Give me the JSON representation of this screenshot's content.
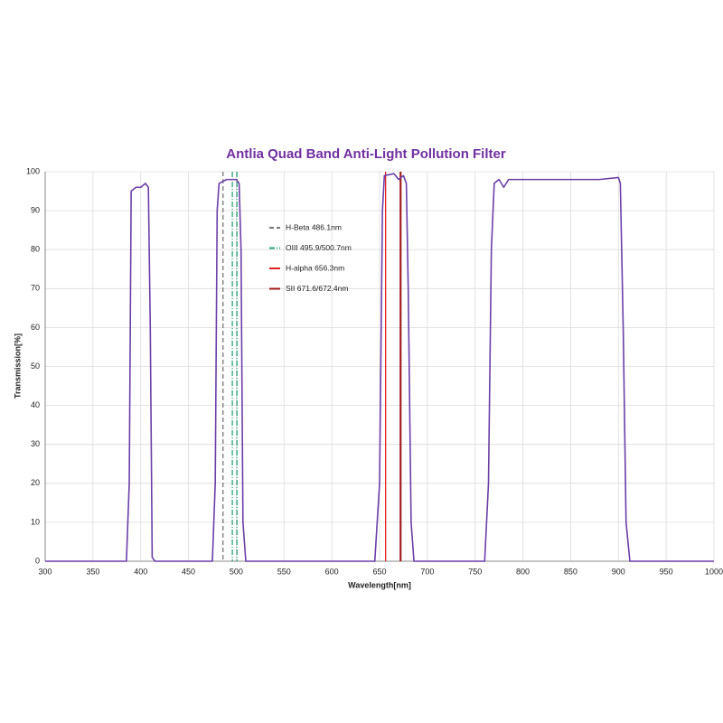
{
  "chart_data": {
    "type": "line",
    "title": "Antlia Quad Band Anti-Light Pollution Filter",
    "x_label": "Wavelength[nm]",
    "y_label": "Transmission[%]",
    "x": [
      300,
      385,
      388,
      390,
      395,
      400,
      405,
      408,
      410,
      412,
      415,
      475,
      478,
      480,
      482,
      490,
      500,
      503,
      505,
      507,
      510,
      645,
      650,
      653,
      655,
      665,
      670,
      675,
      678,
      680,
      683,
      686,
      760,
      764,
      767,
      770,
      775,
      780,
      785,
      800,
      850,
      880,
      900,
      902,
      905,
      908,
      912,
      1000
    ],
    "values": [
      0,
      0,
      20,
      95,
      96,
      96,
      97,
      96,
      60,
      1,
      0,
      0,
      20,
      90,
      97,
      98,
      98,
      97,
      80,
      10,
      0,
      0,
      20,
      90,
      99,
      99.5,
      98,
      99,
      97,
      70,
      10,
      0,
      0,
      20,
      80,
      97,
      98,
      96,
      98,
      98,
      98,
      98,
      98.5,
      97,
      60,
      10,
      0,
      0
    ],
    "color": "#6b3fa8",
    "reference_lines": [
      {
        "name": "H-Beta 486.1nm",
        "color": "#777777",
        "dash": "5,3",
        "x": [
          486.1
        ]
      },
      {
        "name": "OIII 495.9/500.7nm",
        "color": "#2aa57a",
        "dash": "6,2,1,2",
        "x": [
          495.9,
          500.7
        ]
      },
      {
        "name": "H-alpha 656.3nm",
        "color": "#e02020",
        "dash": "none",
        "x": [
          656.3
        ]
      },
      {
        "name": "SII 671.6/672.4nm",
        "color": "#a01818",
        "dash": "none",
        "x": [
          671.6,
          672.4
        ]
      }
    ],
    "xlim": [
      300,
      1000
    ],
    "xticks": [
      300,
      350,
      400,
      450,
      500,
      550,
      600,
      650,
      700,
      750,
      800,
      850,
      900,
      950,
      1000
    ],
    "ylim": [
      0,
      100
    ],
    "yticks": [
      0,
      10,
      20,
      30,
      40,
      50,
      60,
      70,
      80,
      90,
      100
    ],
    "grid": true
  }
}
